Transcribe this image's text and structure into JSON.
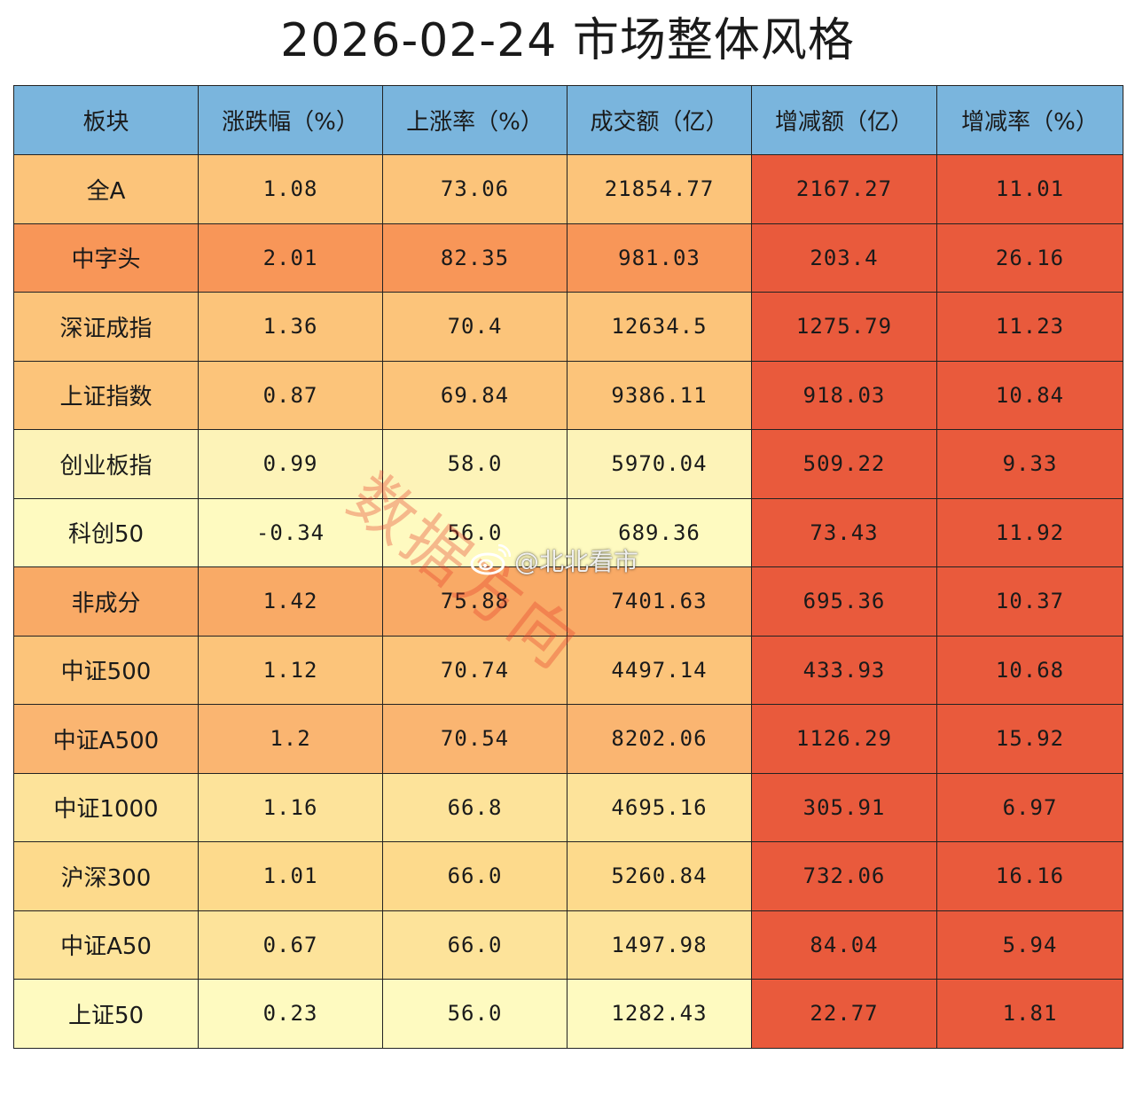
{
  "title": "2026-02-24  市场整体风格",
  "chart_data": {
    "type": "table",
    "title": "2026-02-24  市场整体风格",
    "columns": [
      "板块",
      "涨跌幅（%）",
      "上涨率（%）",
      "成交额（亿）",
      "增减额（亿）",
      "增减率（%）"
    ],
    "rows": [
      [
        "全A",
        "1.08",
        "73.06",
        "21854.77",
        "2167.27",
        "11.01"
      ],
      [
        "中字头",
        "2.01",
        "82.35",
        "981.03",
        "203.4",
        "26.16"
      ],
      [
        "深证成指",
        "1.36",
        "70.4",
        "12634.5",
        "1275.79",
        "11.23"
      ],
      [
        "上证指数",
        "0.87",
        "69.84",
        "9386.11",
        "918.03",
        "10.84"
      ],
      [
        "创业板指",
        "0.99",
        "58.0",
        "5970.04",
        "509.22",
        "9.33"
      ],
      [
        "科创50",
        "-0.34",
        "56.0",
        "689.36",
        "73.43",
        "11.92"
      ],
      [
        "非成分",
        "1.42",
        "75.88",
        "7401.63",
        "695.36",
        "10.37"
      ],
      [
        "中证500",
        "1.12",
        "70.74",
        "4497.14",
        "433.93",
        "10.68"
      ],
      [
        "中证A500",
        "1.2",
        "70.54",
        "8202.06",
        "1126.29",
        "15.92"
      ],
      [
        "中证1000",
        "1.16",
        "66.8",
        "4695.16",
        "305.91",
        "6.97"
      ],
      [
        "沪深300",
        "1.01",
        "66.0",
        "5260.84",
        "732.06",
        "16.16"
      ],
      [
        "中证A50",
        "0.67",
        "66.0",
        "1497.98",
        "84.04",
        "5.94"
      ],
      [
        "上证50",
        "0.23",
        "56.0",
        "1282.43",
        "22.77",
        "1.81"
      ]
    ],
    "row_colors": [
      "#fcc47a",
      "#f89658",
      "#fcc47a",
      "#fcc47a",
      "#fdf3b8",
      "#fefac0",
      "#f9aa66",
      "#fcc47a",
      "#fab571",
      "#fde39a",
      "#fdda8c",
      "#fde39a",
      "#fefac0"
    ],
    "increase_color": "#e95a3c",
    "header_color": "#7ab5dd"
  },
  "watermark": {
    "text": "数据方向",
    "weibo_handle": "@北北看市",
    "weibo_icon": "weibo-icon"
  }
}
